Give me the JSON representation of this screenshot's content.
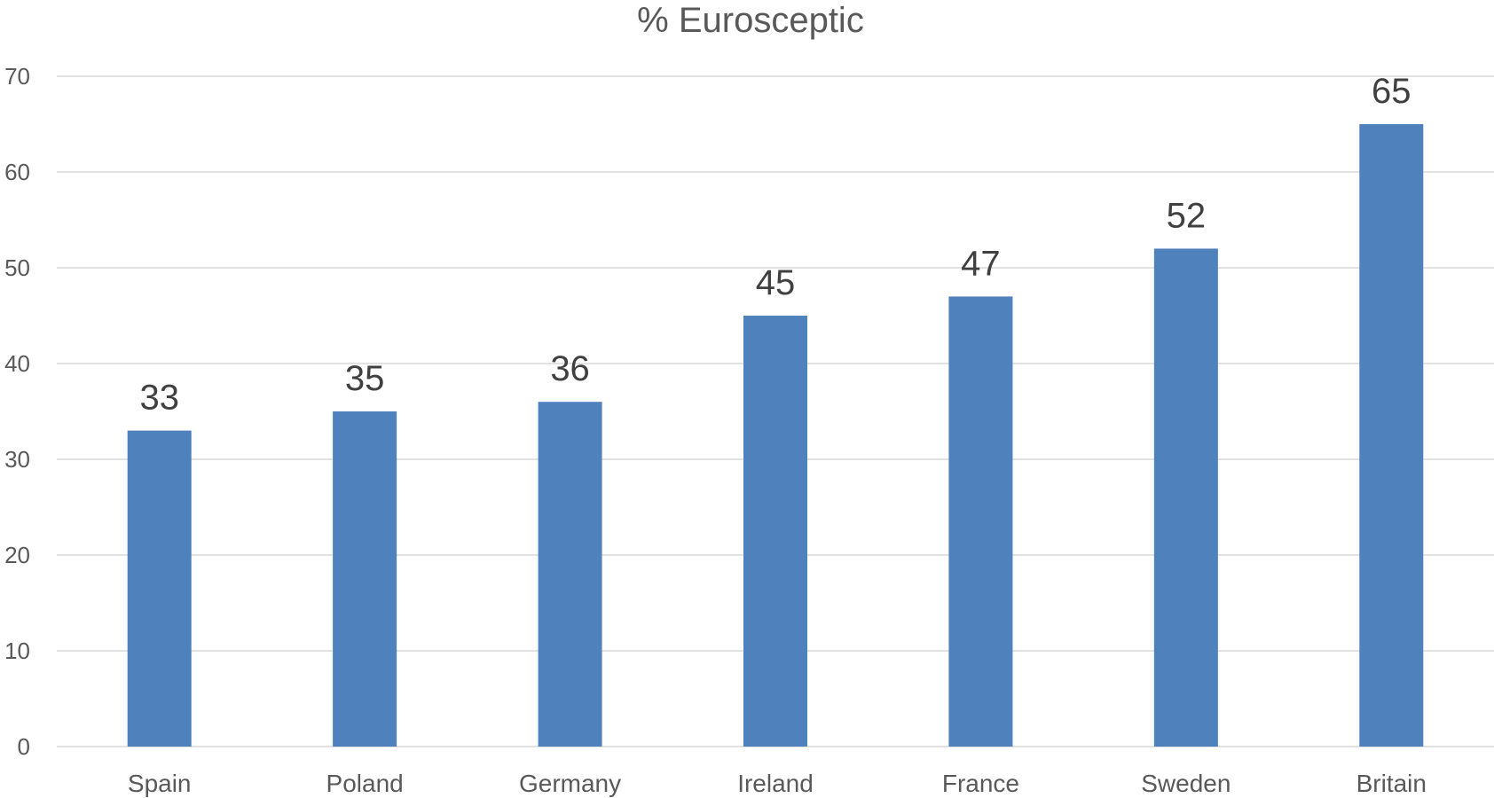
{
  "chart_data": {
    "type": "bar",
    "title": "% Eurosceptic",
    "xlabel": "",
    "ylabel": "",
    "categories": [
      "Spain",
      "Poland",
      "Germany",
      "Ireland",
      "France",
      "Sweden",
      "Britain"
    ],
    "values": [
      33,
      35,
      36,
      45,
      47,
      52,
      65
    ],
    "data_labels": [
      "33",
      "35",
      "36",
      "45",
      "47",
      "52",
      "65"
    ],
    "ylim": [
      0,
      70
    ],
    "yticks": [
      0,
      10,
      20,
      30,
      40,
      50,
      60,
      70
    ],
    "ytick_labels": [
      "0",
      "10",
      "20",
      "30",
      "40",
      "50",
      "60",
      "70"
    ],
    "grid": true,
    "legend": "none",
    "colors": {
      "bar": "#4F81BD",
      "grid": "#D9D9D9",
      "axis_text": "#595959",
      "data_label_text": "#404040"
    }
  }
}
